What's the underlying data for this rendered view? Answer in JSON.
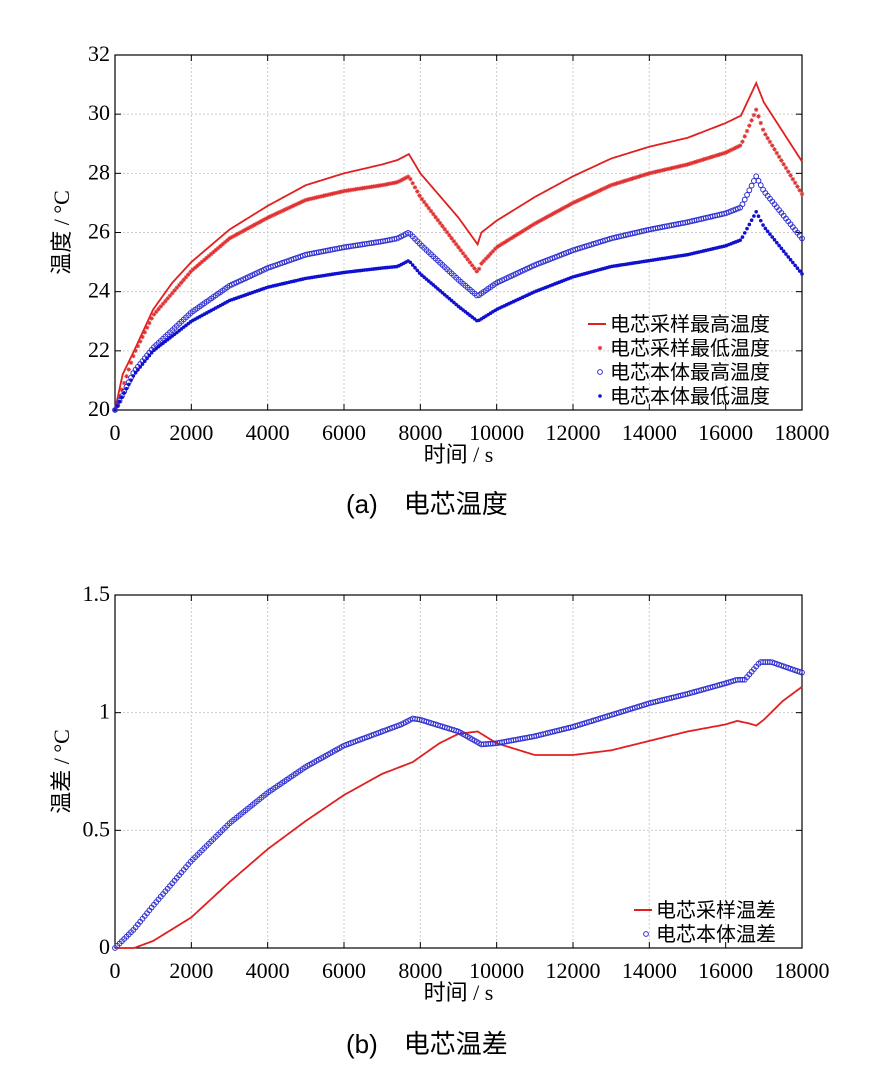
{
  "chart_data": [
    {
      "type": "line",
      "caption": "(a)　电芯温度",
      "xlabel": "时间 / s",
      "ylabel": "温度 / °C",
      "xlim": [
        0,
        18000
      ],
      "ylim": [
        20,
        32
      ],
      "xticks": [
        0,
        2000,
        4000,
        6000,
        8000,
        10000,
        12000,
        14000,
        16000,
        18000
      ],
      "yticks": [
        20,
        22,
        24,
        26,
        28,
        30,
        32
      ],
      "grid": true,
      "legend_position": "bottom-right",
      "series": [
        {
          "name": "电芯采样最高温度",
          "color": "#e02020",
          "style": "line",
          "x": [
            0,
            200,
            500,
            1000,
            1500,
            2000,
            3000,
            4000,
            5000,
            6000,
            7000,
            7400,
            7700,
            8000,
            9000,
            9500,
            9600,
            10000,
            11000,
            12000,
            13000,
            14000,
            15000,
            16000,
            16400,
            16800,
            17000,
            18000
          ],
          "y": [
            20,
            21.2,
            22,
            23.4,
            24.3,
            25,
            26.1,
            26.9,
            27.6,
            28.0,
            28.3,
            28.45,
            28.65,
            28.0,
            26.5,
            25.6,
            26.0,
            26.4,
            27.2,
            27.9,
            28.5,
            28.9,
            29.2,
            29.7,
            29.95,
            31.05,
            30.4,
            28.4
          ]
        },
        {
          "name": "电芯采样最低温度",
          "color": "#e03030",
          "style": "star",
          "x": [
            0,
            500,
            1000,
            2000,
            3000,
            4000,
            5000,
            6000,
            7000,
            7400,
            7700,
            8000,
            9000,
            9500,
            9600,
            10000,
            11000,
            12000,
            13000,
            14000,
            15000,
            16000,
            16400,
            16800,
            17000,
            18000
          ],
          "y": [
            20,
            21.9,
            23.2,
            24.7,
            25.8,
            26.5,
            27.1,
            27.4,
            27.6,
            27.7,
            27.9,
            27.2,
            25.5,
            24.65,
            24.95,
            25.5,
            26.3,
            27.0,
            27.6,
            28.0,
            28.3,
            28.7,
            28.95,
            30.15,
            29.4,
            27.3
          ]
        },
        {
          "name": "电芯本体最高温度",
          "color": "#3030d0",
          "style": "circle",
          "x": [
            0,
            500,
            1000,
            2000,
            3000,
            4000,
            5000,
            6000,
            7000,
            7400,
            7700,
            8000,
            9000,
            9500,
            10000,
            11000,
            12000,
            13000,
            14000,
            15000,
            16000,
            16400,
            16800,
            17000,
            18000
          ],
          "y": [
            20,
            21.3,
            22.1,
            23.3,
            24.2,
            24.8,
            25.25,
            25.5,
            25.7,
            25.8,
            26.0,
            25.6,
            24.4,
            23.85,
            24.3,
            24.9,
            25.4,
            25.8,
            26.1,
            26.35,
            26.65,
            26.85,
            27.9,
            27.4,
            25.8
          ]
        },
        {
          "name": "电芯本体最低温度",
          "color": "#1010d0",
          "style": "dot",
          "x": [
            0,
            500,
            1000,
            2000,
            3000,
            4000,
            5000,
            6000,
            7000,
            7400,
            7700,
            8000,
            9000,
            9500,
            10000,
            11000,
            12000,
            13000,
            14000,
            15000,
            16000,
            16400,
            16800,
            17000,
            18000
          ],
          "y": [
            20,
            21.2,
            22,
            23.0,
            23.7,
            24.15,
            24.45,
            24.65,
            24.8,
            24.85,
            25.05,
            24.6,
            23.5,
            23.0,
            23.4,
            24.0,
            24.5,
            24.85,
            25.05,
            25.25,
            25.55,
            25.75,
            26.7,
            26.2,
            24.6
          ]
        }
      ]
    },
    {
      "type": "line",
      "caption": "(b)　电芯温差",
      "xlabel": "时间 / s",
      "ylabel": "温差 / °C",
      "xlim": [
        0,
        18000
      ],
      "ylim": [
        0,
        1.5
      ],
      "xticks": [
        0,
        2000,
        4000,
        6000,
        8000,
        10000,
        12000,
        14000,
        16000,
        18000
      ],
      "yticks": [
        0,
        0.5,
        1,
        1.5
      ],
      "ytick_labels": [
        "0",
        "0.5",
        "1",
        "1.5"
      ],
      "grid": true,
      "legend_position": "bottom-right",
      "series": [
        {
          "name": "电芯采样温差",
          "color": "#e02020",
          "style": "line",
          "x": [
            0,
            500,
            1000,
            2000,
            3000,
            4000,
            5000,
            6000,
            7000,
            7800,
            8500,
            9000,
            9500,
            10000,
            11000,
            12000,
            13000,
            14000,
            15000,
            16000,
            16300,
            16600,
            16800,
            17000,
            17500,
            18000
          ],
          "y": [
            0,
            0,
            0.03,
            0.13,
            0.28,
            0.42,
            0.54,
            0.65,
            0.74,
            0.79,
            0.87,
            0.91,
            0.92,
            0.87,
            0.82,
            0.82,
            0.84,
            0.88,
            0.92,
            0.95,
            0.965,
            0.955,
            0.945,
            0.97,
            1.05,
            1.11
          ]
        },
        {
          "name": "电芯本体温差",
          "color": "#3030d0",
          "style": "circle",
          "x": [
            0,
            500,
            1000,
            2000,
            3000,
            4000,
            5000,
            6000,
            7000,
            7500,
            7800,
            8000,
            9000,
            9600,
            10000,
            11000,
            12000,
            13000,
            14000,
            15000,
            16000,
            16300,
            16500,
            16900,
            17200,
            18000
          ],
          "y": [
            0,
            0.08,
            0.18,
            0.37,
            0.53,
            0.66,
            0.77,
            0.86,
            0.92,
            0.95,
            0.975,
            0.97,
            0.92,
            0.865,
            0.87,
            0.9,
            0.94,
            0.99,
            1.04,
            1.08,
            1.125,
            1.14,
            1.14,
            1.215,
            1.215,
            1.17
          ]
        }
      ]
    }
  ]
}
